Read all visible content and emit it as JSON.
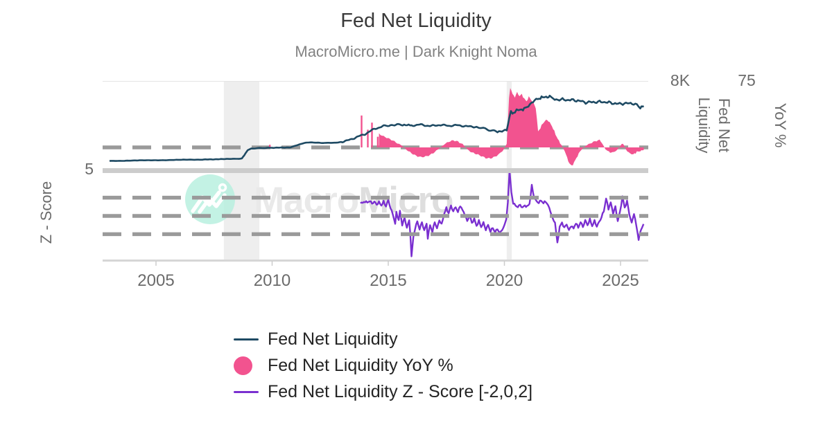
{
  "header": {
    "title": "Fed Net Liquidity",
    "subtitle": "MacroMicro.me | Dark Knight Noma"
  },
  "watermark": {
    "macro": "Macro",
    "micro": "Micro"
  },
  "axes": {
    "left": {
      "tick": "5",
      "label": "Z - Score"
    },
    "right_liquidity": {
      "tick": "8K",
      "label": "Fed Net Liquidity"
    },
    "right_yoy": {
      "tick": "75",
      "label": "YoY %"
    },
    "x_ticks": [
      "2005",
      "2010",
      "2015",
      "2020",
      "2025"
    ]
  },
  "legend": [
    {
      "label": "Fed Net Liquidity",
      "type": "line",
      "color": "#1e4a63"
    },
    {
      "label": "Fed Net Liquidity YoY %",
      "type": "circle",
      "color": "#f2538f"
    },
    {
      "label": "Fed Net Liquidity Z - Score [-2,0,2]",
      "type": "line",
      "color": "#7a2fd0"
    }
  ],
  "colors": {
    "liquidity": "#1e4a63",
    "yoy": "#f2538f",
    "zscore": "#7a2fd0",
    "gridline_dash": "#9a9a9a",
    "divider": "#cccccc",
    "recession_band": "#eeeeee",
    "watermark_mint": "#b4efdd"
  },
  "chart_data": {
    "type": "line",
    "title": "Fed Net Liquidity",
    "x_range": [
      2003,
      2026.2
    ],
    "x_tick_years": [
      2005,
      2010,
      2015,
      2020,
      2025
    ],
    "grid": "dashed-horizontal",
    "legend_position": "bottom-left",
    "recession_bands": [
      [
        2007.92,
        2009.45
      ],
      [
        2020.1,
        2020.32
      ]
    ],
    "top_panel": {
      "liquidity_axis": {
        "visible_tick": "8K",
        "top_value_K": 8
      },
      "yoy_axis": {
        "visible_tick": "75",
        "top_value_pct": 75,
        "zero_gridline": 0
      }
    },
    "bottom_panel": {
      "zscore_axis": {
        "visible_tick": "5",
        "top_value": 5,
        "gridlines": [
          2,
          0,
          -2
        ]
      }
    },
    "series": [
      {
        "name": "Fed Net Liquidity",
        "type": "line",
        "unit": "K (trillions USD)",
        "color": "#1e4a63",
        "points": [
          [
            2003,
            1.0
          ],
          [
            2004,
            1.03
          ],
          [
            2005,
            1.06
          ],
          [
            2006,
            1.09
          ],
          [
            2007,
            1.12
          ],
          [
            2007.8,
            1.15
          ],
          [
            2008.5,
            1.18
          ],
          [
            2008.7,
            1.22
          ],
          [
            2008.8,
            1.5
          ],
          [
            2008.95,
            1.95
          ],
          [
            2009.1,
            2.08
          ],
          [
            2009.4,
            2.12
          ],
          [
            2010,
            2.15
          ],
          [
            2010.8,
            2.18
          ],
          [
            2011.1,
            2.4
          ],
          [
            2011.5,
            2.62
          ],
          [
            2011.8,
            2.6
          ],
          [
            2012.2,
            2.57
          ],
          [
            2012.8,
            2.6
          ],
          [
            2013.2,
            2.75
          ],
          [
            2013.6,
            3.05
          ],
          [
            2014,
            3.35
          ],
          [
            2014.4,
            3.8
          ],
          [
            2014.8,
            4.05
          ],
          [
            2015.1,
            4.15
          ],
          [
            2015.5,
            4.18
          ],
          [
            2016,
            4.1
          ],
          [
            2016.4,
            4.18
          ],
          [
            2016.8,
            4.05
          ],
          [
            2017.2,
            4.15
          ],
          [
            2017.6,
            4.08
          ],
          [
            2018,
            4.12
          ],
          [
            2018.4,
            4.02
          ],
          [
            2018.8,
            3.98
          ],
          [
            2019.1,
            3.85
          ],
          [
            2019.4,
            3.68
          ],
          [
            2019.7,
            3.55
          ],
          [
            2019.9,
            3.6
          ],
          [
            2020.1,
            3.68
          ],
          [
            2020.2,
            4.6
          ],
          [
            2020.28,
            5.35
          ],
          [
            2020.35,
            5.1
          ],
          [
            2020.45,
            5.3
          ],
          [
            2020.6,
            5.5
          ],
          [
            2020.75,
            5.45
          ],
          [
            2020.9,
            5.65
          ],
          [
            2021.1,
            5.95
          ],
          [
            2021.3,
            6.3
          ],
          [
            2021.5,
            6.45
          ],
          [
            2021.65,
            6.6
          ],
          [
            2021.8,
            6.55
          ],
          [
            2021.95,
            6.65
          ],
          [
            2022.1,
            6.5
          ],
          [
            2022.3,
            6.35
          ],
          [
            2022.5,
            6.45
          ],
          [
            2022.7,
            6.25
          ],
          [
            2022.9,
            6.35
          ],
          [
            2023.1,
            6.2
          ],
          [
            2023.3,
            6.3
          ],
          [
            2023.5,
            6.1
          ],
          [
            2023.7,
            6.25
          ],
          [
            2023.9,
            6.1
          ],
          [
            2024.1,
            6.2
          ],
          [
            2024.3,
            6.05
          ],
          [
            2024.5,
            6.15
          ],
          [
            2024.7,
            6.0
          ],
          [
            2024.9,
            6.1
          ],
          [
            2025.1,
            6.0
          ],
          [
            2025.3,
            6.1
          ],
          [
            2025.5,
            5.95
          ],
          [
            2025.7,
            5.9
          ],
          [
            2025.85,
            5.65
          ],
          [
            2026,
            5.8
          ]
        ]
      },
      {
        "name": "Fed Net Liquidity YoY %",
        "type": "area",
        "unit": "%",
        "color": "#f2538f",
        "spikes": [
          [
            2009.9,
            3
          ],
          [
            2013.85,
            36
          ],
          [
            2014.12,
            20
          ],
          [
            2014.3,
            28
          ],
          [
            2014.55,
            12
          ]
        ],
        "points": [
          [
            2014.6,
            15
          ],
          [
            2014.8,
            12
          ],
          [
            2015.0,
            10
          ],
          [
            2015.2,
            8
          ],
          [
            2015.4,
            5
          ],
          [
            2015.6,
            2
          ],
          [
            2015.8,
            -3
          ],
          [
            2016.0,
            -7
          ],
          [
            2016.2,
            -10
          ],
          [
            2016.4,
            -11
          ],
          [
            2016.6,
            -10
          ],
          [
            2016.8,
            -8
          ],
          [
            2017.0,
            -5
          ],
          [
            2017.2,
            -1
          ],
          [
            2017.4,
            3
          ],
          [
            2017.6,
            6
          ],
          [
            2017.8,
            8
          ],
          [
            2018.0,
            7
          ],
          [
            2018.2,
            4
          ],
          [
            2018.4,
            -2
          ],
          [
            2018.6,
            -6
          ],
          [
            2018.8,
            -8
          ],
          [
            2019.0,
            -10
          ],
          [
            2019.2,
            -12
          ],
          [
            2019.4,
            -12
          ],
          [
            2019.6,
            -10
          ],
          [
            2019.8,
            -7
          ],
          [
            2019.95,
            -3
          ],
          [
            2020.1,
            4
          ],
          [
            2020.2,
            55
          ],
          [
            2020.25,
            68
          ],
          [
            2020.35,
            60
          ],
          [
            2020.45,
            57
          ],
          [
            2020.55,
            62
          ],
          [
            2020.65,
            58
          ],
          [
            2020.75,
            60
          ],
          [
            2020.85,
            55
          ],
          [
            2020.95,
            52
          ],
          [
            2021.05,
            57
          ],
          [
            2021.15,
            54
          ],
          [
            2021.25,
            50
          ],
          [
            2021.35,
            45
          ],
          [
            2021.45,
            18
          ],
          [
            2021.55,
            22
          ],
          [
            2021.65,
            27
          ],
          [
            2021.75,
            30
          ],
          [
            2021.85,
            31
          ],
          [
            2021.95,
            28
          ],
          [
            2022.05,
            24
          ],
          [
            2022.15,
            18
          ],
          [
            2022.25,
            12
          ],
          [
            2022.35,
            7
          ],
          [
            2022.45,
            3
          ],
          [
            2022.6,
            -4
          ],
          [
            2022.7,
            -12
          ],
          [
            2022.8,
            -18
          ],
          [
            2022.9,
            -21
          ],
          [
            2023.0,
            -17
          ],
          [
            2023.1,
            -12
          ],
          [
            2023.2,
            -7
          ],
          [
            2023.3,
            -3
          ],
          [
            2023.5,
            2
          ],
          [
            2023.7,
            5
          ],
          [
            2023.9,
            7
          ],
          [
            2024.1,
            8
          ],
          [
            2024.2,
            5
          ],
          [
            2024.35,
            -2
          ],
          [
            2024.5,
            -5
          ],
          [
            2024.65,
            -6
          ],
          [
            2024.8,
            -4
          ],
          [
            2025.0,
            2
          ],
          [
            2025.1,
            5
          ],
          [
            2025.25,
            -3
          ],
          [
            2025.4,
            -7
          ],
          [
            2025.55,
            -8
          ],
          [
            2025.7,
            -5
          ],
          [
            2025.85,
            -4
          ],
          [
            2026.0,
            -3
          ]
        ]
      },
      {
        "name": "Fed Net Liquidity Z - Score [-2,0,2]",
        "type": "line",
        "unit": "z",
        "color": "#7a2fd0",
        "points": [
          [
            2013.8,
            1.5
          ],
          [
            2013.9,
            1.4
          ],
          [
            2014.0,
            1.6
          ],
          [
            2014.1,
            1.45
          ],
          [
            2014.2,
            1.65
          ],
          [
            2014.3,
            1.35
          ],
          [
            2014.4,
            1.55
          ],
          [
            2014.5,
            1.25
          ],
          [
            2014.6,
            1.5
          ],
          [
            2014.7,
            1.15
          ],
          [
            2014.8,
            1.55
          ],
          [
            2014.9,
            1.05
          ],
          [
            2015.0,
            1.75
          ],
          [
            2015.1,
            0.85
          ],
          [
            2015.2,
            0.15
          ],
          [
            2015.3,
            -0.85
          ],
          [
            2015.35,
            0.35
          ],
          [
            2015.45,
            -0.45
          ],
          [
            2015.5,
            0.55
          ],
          [
            2015.6,
            -0.95
          ],
          [
            2015.7,
            -0.25
          ],
          [
            2015.8,
            -1.25
          ],
          [
            2015.9,
            -0.55
          ],
          [
            2015.95,
            -1.9
          ],
          [
            2016.0,
            -4.45
          ],
          [
            2016.08,
            -2.2
          ],
          [
            2016.15,
            -1.4
          ],
          [
            2016.25,
            -0.6
          ],
          [
            2016.35,
            -1.45
          ],
          [
            2016.45,
            -0.7
          ],
          [
            2016.55,
            -1.6
          ],
          [
            2016.65,
            -0.85
          ],
          [
            2016.7,
            -2.4
          ],
          [
            2016.8,
            -1.0
          ],
          [
            2016.9,
            -1.75
          ],
          [
            2017.0,
            -0.65
          ],
          [
            2017.1,
            -1.4
          ],
          [
            2017.2,
            -0.45
          ],
          [
            2017.3,
            -0.95
          ],
          [
            2017.4,
            0.2
          ],
          [
            2017.5,
            0.85
          ],
          [
            2017.6,
            0.3
          ],
          [
            2017.7,
            1.1
          ],
          [
            2017.8,
            0.5
          ],
          [
            2017.9,
            1.0
          ],
          [
            2018.0,
            0.4
          ],
          [
            2018.1,
            1.15
          ],
          [
            2018.2,
            0.6
          ],
          [
            2018.3,
            0.15
          ],
          [
            2018.4,
            -0.6
          ],
          [
            2018.5,
            0.1
          ],
          [
            2018.6,
            -0.8
          ],
          [
            2018.7,
            -0.3
          ],
          [
            2018.8,
            -1.1
          ],
          [
            2018.9,
            -0.55
          ],
          [
            2019.0,
            -1.2
          ],
          [
            2019.1,
            -0.75
          ],
          [
            2019.2,
            -1.5
          ],
          [
            2019.3,
            -1.0
          ],
          [
            2019.4,
            -1.7
          ],
          [
            2019.5,
            -1.3
          ],
          [
            2019.6,
            -1.8
          ],
          [
            2019.7,
            -1.4
          ],
          [
            2019.8,
            -1.9
          ],
          [
            2019.9,
            -1.5
          ],
          [
            2020.0,
            -1.1
          ],
          [
            2020.08,
            -0.4
          ],
          [
            2020.15,
            1.5
          ],
          [
            2020.22,
            5.0
          ],
          [
            2020.3,
            2.6
          ],
          [
            2020.38,
            1.45
          ],
          [
            2020.48,
            1.1
          ],
          [
            2020.58,
            1.0
          ],
          [
            2020.68,
            1.2
          ],
          [
            2020.78,
            0.9
          ],
          [
            2020.88,
            1.15
          ],
          [
            2020.98,
            1.0
          ],
          [
            2021.08,
            1.35
          ],
          [
            2021.18,
            3.3
          ],
          [
            2021.28,
            2.0
          ],
          [
            2021.38,
            1.6
          ],
          [
            2021.48,
            1.45
          ],
          [
            2021.58,
            1.7
          ],
          [
            2021.68,
            1.4
          ],
          [
            2021.78,
            1.6
          ],
          [
            2021.88,
            1.15
          ],
          [
            2021.98,
            0.55
          ],
          [
            2022.08,
            -0.35
          ],
          [
            2022.18,
            -0.7
          ],
          [
            2022.28,
            -3.0
          ],
          [
            2022.38,
            -1.2
          ],
          [
            2022.48,
            -0.75
          ],
          [
            2022.58,
            -1.3
          ],
          [
            2022.68,
            -0.9
          ],
          [
            2022.78,
            -1.6
          ],
          [
            2022.88,
            -1.05
          ],
          [
            2022.98,
            -1.4
          ],
          [
            2023.08,
            -0.75
          ],
          [
            2023.18,
            -1.3
          ],
          [
            2023.28,
            -0.65
          ],
          [
            2023.38,
            -1.2
          ],
          [
            2023.48,
            -0.5
          ],
          [
            2023.58,
            -1.0
          ],
          [
            2023.68,
            -0.4
          ],
          [
            2023.78,
            -1.1
          ],
          [
            2023.88,
            -0.55
          ],
          [
            2023.98,
            -1.15
          ],
          [
            2024.08,
            -0.65
          ],
          [
            2024.18,
            -0.15
          ],
          [
            2024.28,
            0.55
          ],
          [
            2024.38,
            1.9
          ],
          [
            2024.48,
            0.8
          ],
          [
            2024.58,
            1.45
          ],
          [
            2024.68,
            0.3
          ],
          [
            2024.78,
            1.0
          ],
          [
            2024.88,
            -0.55
          ],
          [
            2024.98,
            0.45
          ],
          [
            2025.08,
            2.1
          ],
          [
            2025.18,
            0.9
          ],
          [
            2025.28,
            1.6
          ],
          [
            2025.38,
            0.2
          ],
          [
            2025.48,
            -0.8
          ],
          [
            2025.58,
            0.3
          ],
          [
            2025.68,
            -1.1
          ],
          [
            2025.78,
            -2.55
          ],
          [
            2025.88,
            -1.5
          ],
          [
            2025.98,
            -0.95
          ],
          [
            2026.0,
            -0.9
          ]
        ]
      }
    ]
  }
}
